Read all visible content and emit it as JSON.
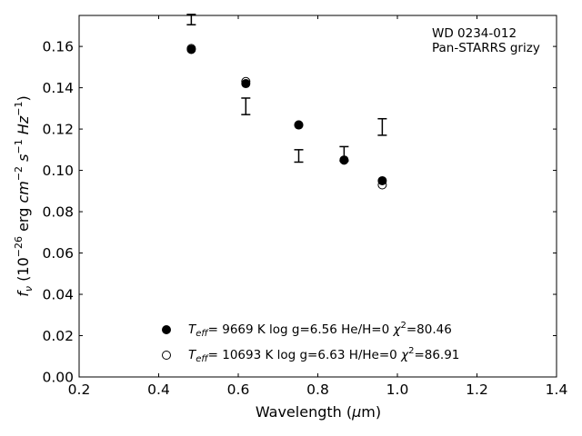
{
  "chart_data": {
    "type": "scatter",
    "title": "",
    "xlabel": "Wavelength (μm)",
    "ylabel": "fν (10⁻²⁶ erg cm⁻² s⁻¹ Hz⁻¹)",
    "xlim": [
      0.2,
      1.4
    ],
    "ylim": [
      0.0,
      0.175
    ],
    "x_ticks": [
      0.2,
      0.4,
      0.6,
      0.8,
      1.0,
      1.2,
      1.4
    ],
    "x_tick_labels": [
      "0.2",
      "0.4",
      "0.6",
      "0.8",
      "1.0",
      "1.2",
      "1.4"
    ],
    "y_ticks": [
      0.0,
      0.02,
      0.04,
      0.06,
      0.08,
      0.1,
      0.12,
      0.14,
      0.16
    ],
    "y_tick_labels": [
      "0.00",
      "0.02",
      "0.04",
      "0.06",
      "0.08",
      "0.10",
      "0.12",
      "0.14",
      "0.16"
    ],
    "grid": false,
    "annotation": [
      "WD 0234-012",
      "Pan-STARRS grizy"
    ],
    "observed": {
      "x": [
        0.482,
        0.619,
        0.752,
        0.866,
        0.962
      ],
      "y": [
        0.173,
        0.131,
        0.107,
        0.108,
        0.121
      ],
      "yerr": [
        0.0025,
        0.004,
        0.003,
        0.0035,
        0.004
      ]
    },
    "series": [
      {
        "name": "Teff=  9669 K  log g=6.56  He/H=0  χ²=80.46",
        "marker": "filled-circle",
        "x": [
          0.482,
          0.619,
          0.752,
          0.866,
          0.962
        ],
        "y": [
          0.1585,
          0.142,
          0.122,
          0.105,
          0.095
        ]
      },
      {
        "name": "Teff= 10693 K  log g=6.63  H/He=0  χ²=86.91",
        "marker": "open-circle",
        "x": [
          0.482,
          0.619,
          0.752,
          0.866,
          0.962
        ],
        "y": [
          0.159,
          0.143,
          0.122,
          0.105,
          0.093
        ]
      }
    ],
    "legend_position": "bottom-center",
    "colors": {
      "marker": "#000000",
      "axis": "#000000",
      "background": "#ffffff"
    }
  }
}
